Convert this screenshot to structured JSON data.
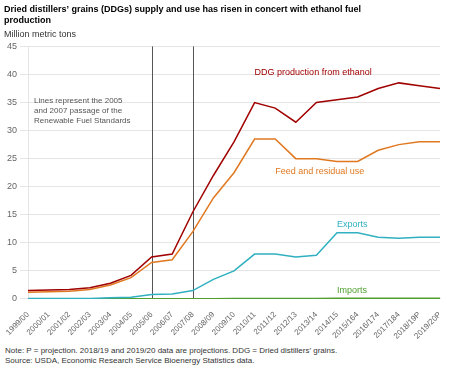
{
  "chart_data": {
    "type": "line",
    "title": [
      "Dried distillers’ grains (DDGs) supply and use has risen in concert with ethanol fuel",
      "production"
    ],
    "y_label": "Million metric tons",
    "note": "Note: P = projection. 2018/19 and 2019/20 data are projections. DDG = Dried distillers’ grains.\nSource: USDA, Economic Research Service Bioenergy Statistics data.",
    "annotation": "Lines represent the 2005\nand 2007 passage of the\nRenewable Fuel Standards",
    "categories": [
      "1999/00",
      "2000/01",
      "2001/02",
      "2002/03",
      "2003/04",
      "2004/05",
      "2005/06",
      "2006/07",
      "2007/08",
      "2008/09",
      "2009/10",
      "2010/11",
      "2011/12",
      "2012/13",
      "2013/14",
      "2014/15",
      "2015/164",
      "2016/174",
      "2017/184",
      "2018/19P",
      "2019/20P"
    ],
    "vlines": [
      "2005/06",
      "2007/08"
    ],
    "series": [
      {
        "name": "DDG production from ethanol",
        "color": "#A00000",
        "values": [
          1.5,
          1.6,
          1.7,
          2.0,
          2.8,
          4.2,
          7.5,
          8.0,
          15.5,
          22.0,
          28.0,
          35.0,
          34.0,
          31.5,
          35.0,
          35.5,
          36.0,
          37.5,
          38.5,
          38.0,
          37.5
        ]
      },
      {
        "name": "Feed and residual use",
        "color": "#E07820",
        "values": [
          1.2,
          1.3,
          1.4,
          1.7,
          2.5,
          3.8,
          6.5,
          7.0,
          12.0,
          18.0,
          22.5,
          28.5,
          28.5,
          25.0,
          25.0,
          24.5,
          24.5,
          26.5,
          27.5,
          28.0,
          28.0
        ]
      },
      {
        "name": "Exports",
        "color": "#30B0C0",
        "values": [
          0.1,
          0.1,
          0.1,
          0.1,
          0.2,
          0.3,
          0.8,
          0.9,
          1.5,
          3.5,
          5.0,
          8.0,
          8.0,
          7.5,
          7.8,
          11.8,
          11.8,
          11.0,
          10.8,
          11.0,
          11.0
        ]
      },
      {
        "name": "Imports",
        "color": "#50A030",
        "values": [
          0.05,
          0.05,
          0.05,
          0.05,
          0.05,
          0.05,
          0.05,
          0.05,
          0.05,
          0.05,
          0.1,
          0.1,
          0.1,
          0.1,
          0.1,
          0.15,
          0.15,
          0.15,
          0.15,
          0.15,
          0.15
        ]
      }
    ],
    "ylim": [
      0,
      45
    ],
    "yticks": [
      0,
      5,
      10,
      15,
      20,
      25,
      30,
      35,
      40,
      45
    ],
    "grid": true
  }
}
